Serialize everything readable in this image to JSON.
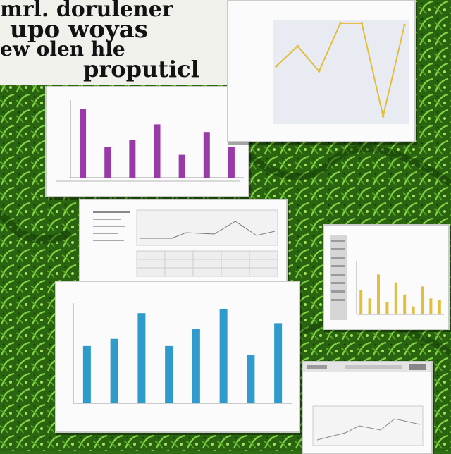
{
  "headline": {
    "lines": [
      "mrl. dorulener",
      "upo  woyas",
      "ew  olen  hle",
      "proputicl"
    ]
  },
  "colors": {
    "foliage_dark": "#1c4a0c",
    "foliage_light": "#7dcb3e",
    "purple_bar": "#9a3aa8",
    "gold_line": "#e3bd3c",
    "blue_bar": "#2e9bcc"
  },
  "chart_data": [
    {
      "type": "bar",
      "title": "",
      "categories": [
        "",
        "",
        "",
        "",
        "",
        "",
        ""
      ],
      "values": [
        9,
        4,
        5,
        7,
        3,
        6,
        4
      ],
      "ylim": [
        0,
        10
      ],
      "color": "#9a3aa8"
    },
    {
      "type": "line",
      "title": "",
      "x": [
        0,
        1,
        2,
        3,
        4,
        5,
        6
      ],
      "values": [
        5.5,
        7.5,
        5,
        9.8,
        9.8,
        0.5,
        9.6
      ],
      "ylim": [
        0,
        10
      ],
      "color": "#e3bd3c"
    },
    {
      "type": "bar",
      "title": "",
      "xlabel": "",
      "categories": [
        "",
        "",
        "",
        "",
        "",
        "",
        "",
        ""
      ],
      "values": [
        4,
        4.5,
        6.3,
        4,
        5.2,
        6.6,
        3.4,
        5.6
      ],
      "ylim": [
        0,
        7
      ],
      "color": "#2e9bcc"
    },
    {
      "type": "bar",
      "title": "",
      "categories": [
        "",
        "",
        "",
        "",
        "",
        "",
        "",
        "",
        "",
        ""
      ],
      "values": [
        3,
        2,
        5,
        1.5,
        4,
        2.5,
        1,
        3.5,
        2,
        1.8
      ],
      "ylim": [
        0,
        6
      ],
      "color": "#e3bd3c"
    }
  ]
}
